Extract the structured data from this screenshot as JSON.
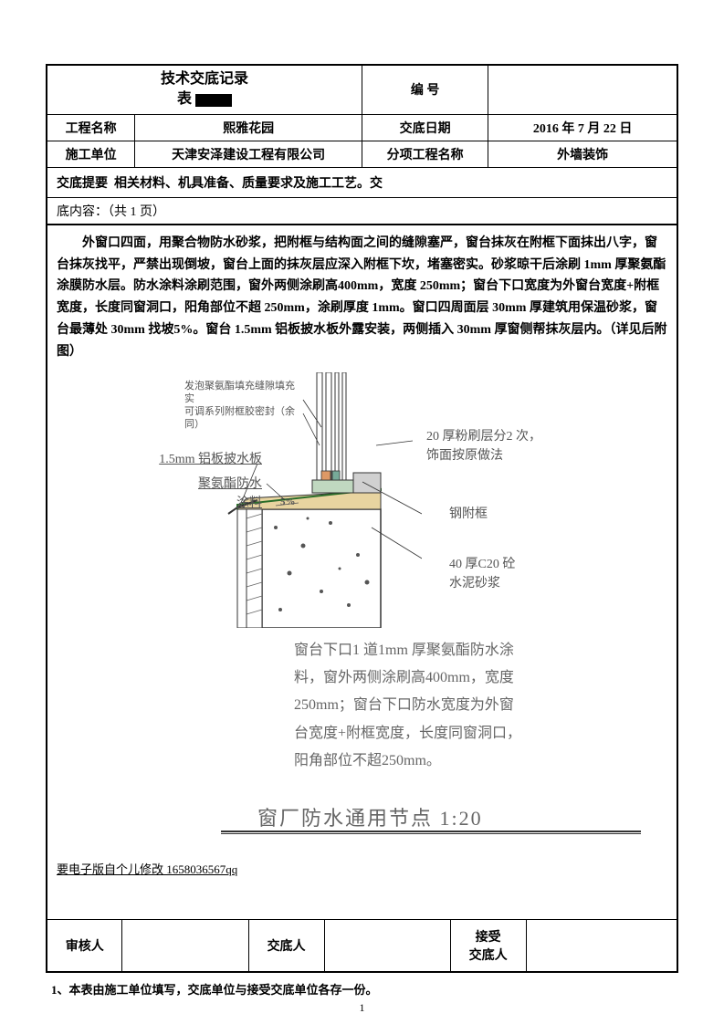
{
  "header": {
    "title_line1": "技术交底记录",
    "title_line2_prefix": "表",
    "code_label": "编  号",
    "code_value": "",
    "rows": [
      {
        "l1": "工程名称",
        "v1": "熙雅花园",
        "l2": "交底日期",
        "v2": "2016 年 7 月 22 日"
      },
      {
        "l1": "施工单位",
        "v1": "天津安泽建设工程有限公司",
        "l2": "分项工程名称",
        "v2": "外墙装饰"
      }
    ],
    "summary_label": "交底提要",
    "summary_value": "相关材料、机具准备、质量要求及施工工艺。交",
    "page_info": "底内容：（共  1  页）"
  },
  "body": {
    "paragraph": "外窗口四面，用聚合物防水砂浆，把附框与结构面之间的缝隙塞严，窗台抹灰在附框下面抹出八字，窗台抹灰找平，严禁出现倒坡，窗台上面的抹灰层应深入附框下坎，堵塞密实。砂浆晾干后涂刷 1mm 厚聚氨酯涂膜防水层。防水涂料涂刷范围，窗外两侧涂刷高400mm，宽度 250mm；窗台下口宽度为外窗台宽度+附框宽度，长度同窗洞口，阳角部位不超 250mm，涂刷厚度 1mm。窗口四周面层 30mm 厚建筑用保温砂浆，窗台最薄处 30mm 找坡5%。窗台 1.5mm 铝板披水板外露安装，两侧插入 30mm 厚窗侧帮抹灰层内。（详见后附图）",
    "qq": "要电子版自个儿修改 1658036567qq"
  },
  "diagram": {
    "label_tl": "发泡聚氨酯填充缝隙填充实\n可调系列附框胶密封（余同）",
    "label_l1": "1.5mm 铝板披水板",
    "label_l2": "聚氨酯防水涂料",
    "label_r1": "20 厚粉刷层分2 次，\n饰面按原做法",
    "label_r2": "钢附框",
    "label_r3": "40 厚C20 砼\n水泥砂浆",
    "note": "窗台下口1 道1mm 厚聚氨酯防水涂\n料，窗外两侧涂刷高400mm，宽度\n250mm；窗台下口防水宽度为外窗\n台宽度+附框宽度，长度同窗洞口，\n阳角部位不超250mm。",
    "title": "窗厂防水通用节点  1:20",
    "colors": {
      "line": "#333333",
      "hatch": "#666666",
      "fill1": "#c0d8c0",
      "fill2": "#e8d4a0",
      "fill3": "#d0d0d0"
    }
  },
  "footer": {
    "c1": "审核人",
    "c2": "",
    "c3": "交底人",
    "c4": "",
    "c5": "接受\n交底人",
    "c6": ""
  },
  "footnote": "1、本表由施工单位填写，交底单位与接受交底单位各存一份。",
  "page_num": "1"
}
